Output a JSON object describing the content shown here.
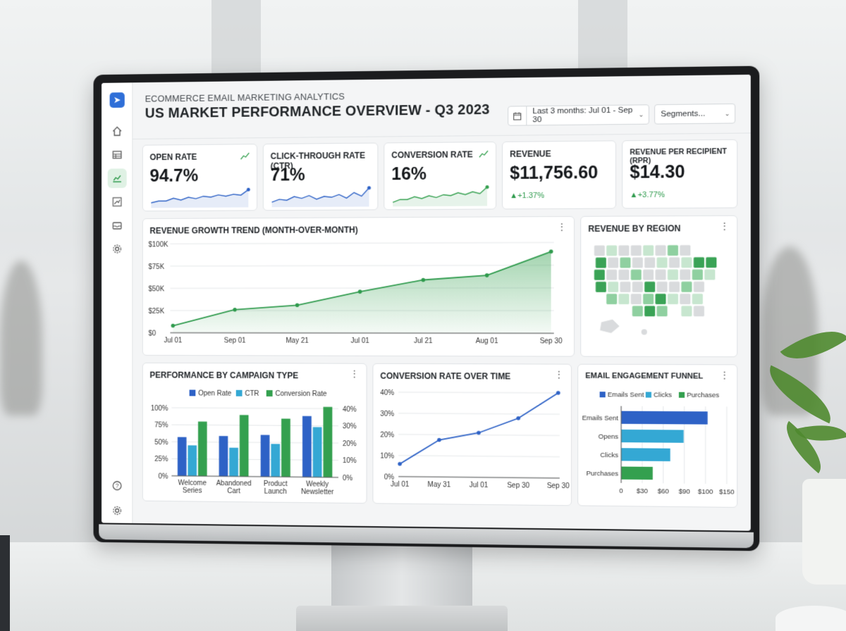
{
  "header": {
    "subtitle": "ECOMMERCE EMAIL MARKETING ANALYTICS",
    "title": "US MARKET PERFORMANCE OVERVIEW - Q3 2023",
    "date_range": "Last 3 months: Jul 01 - Sep 30",
    "segments_label": "Segments..."
  },
  "sidebar": {
    "items": [
      "send-icon",
      "home-icon",
      "table-icon",
      "analytics-icon",
      "trend-icon",
      "inbox-icon",
      "settings-icon",
      "help-icon",
      "settings-icon"
    ],
    "active": "analytics-icon"
  },
  "kpis": [
    {
      "label": "OPEN RATE",
      "value": "94.7%",
      "spark": [
        0.2,
        0.3,
        0.3,
        0.45,
        0.35,
        0.5,
        0.42,
        0.55,
        0.5,
        0.62,
        0.55,
        0.65,
        0.6,
        0.9
      ],
      "color": "#2e62c6"
    },
    {
      "label": "CLICK-THROUGH RATE (CTR)",
      "value": "71%",
      "spark": [
        0.2,
        0.35,
        0.3,
        0.5,
        0.4,
        0.55,
        0.35,
        0.5,
        0.45,
        0.6,
        0.4,
        0.7,
        0.5,
        0.95
      ],
      "color": "#2e62c6"
    },
    {
      "label": "CONVERSION RATE",
      "value": "16%",
      "spark": [
        0.15,
        0.3,
        0.3,
        0.45,
        0.35,
        0.5,
        0.4,
        0.55,
        0.5,
        0.65,
        0.55,
        0.7,
        0.6,
        0.95
      ],
      "color": "#34a04f"
    },
    {
      "label": "REVENUE",
      "value": "$11,756.60",
      "delta": "▲+1.37%"
    },
    {
      "label": "REVENUE PER RECIPIENT (RPR)",
      "value": "$14.30",
      "delta": "▲+3.77%"
    }
  ],
  "revenue_trend": {
    "title": "REVENUE GROWTH TREND (MONTH-OVER-MONTH)",
    "y_ticks": [
      "$100K",
      "$75K",
      "$50K",
      "$25K",
      "$0"
    ],
    "x_ticks": [
      "Jul 01",
      "Sep 01",
      "May 21",
      "Jul 01",
      "Jul 21",
      "Aug 01",
      "Sep 30"
    ]
  },
  "region": {
    "title": "REVENUE BY REGION"
  },
  "campaign": {
    "title": "PERFORMANCE BY CAMPAIGN TYPE",
    "legend": [
      "Open Rate",
      "CTR",
      "Conversion Rate"
    ],
    "left_ticks": [
      "100%",
      "75%",
      "50%",
      "25%",
      "0%"
    ],
    "right_ticks": [
      "40%",
      "30%",
      "20%",
      "10%",
      "0%"
    ],
    "categories": [
      [
        "Welcome",
        "Series"
      ],
      [
        "Abandoned",
        "Cart"
      ],
      [
        "Product",
        "Launch"
      ],
      [
        "Weekly",
        "Newsletter"
      ]
    ]
  },
  "conversion_time": {
    "title": "CONVERSION RATE OVER TIME",
    "y_ticks": [
      "40%",
      "30%",
      "20%",
      "10%",
      "0%"
    ],
    "x_ticks": [
      "Jul 01",
      "May 31",
      "Jul 01",
      "Sep 30",
      "Sep 30"
    ]
  },
  "funnel": {
    "title": "EMAIL ENGAGEMENT FUNNEL",
    "legend": [
      "Emails Sent",
      "Clicks",
      "Purchases"
    ],
    "labels": [
      "Emails Sent",
      "Opens",
      "Clicks",
      "Purchases"
    ],
    "x_ticks": [
      "0",
      "$30",
      "$60",
      "$90",
      "$100",
      "$150"
    ]
  },
  "chart_data": [
    {
      "type": "area",
      "title": "REVENUE GROWTH TREND (MONTH-OVER-MONTH)",
      "x": [
        "Jul 01",
        "Sep 01",
        "May 21",
        "Jul 01",
        "Jul 21",
        "Aug 01",
        "Sep 30"
      ],
      "series": [
        {
          "values": [
            8000,
            26000,
            31000,
            46000,
            59000,
            64000,
            90000
          ]
        }
      ],
      "ylim": [
        0,
        100000
      ],
      "color": "#34a04f"
    },
    {
      "type": "bar",
      "title": "PERFORMANCE BY CAMPAIGN TYPE",
      "categories": [
        "Welcome Series",
        "Abandoned Cart",
        "Product Launch",
        "Weekly Newsletter"
      ],
      "series": [
        {
          "name": "Open Rate",
          "values": [
            57,
            59,
            61,
            89
          ],
          "axis": "left",
          "color": "#2e62c6"
        },
        {
          "name": "CTR",
          "values": [
            45,
            42,
            48,
            73
          ],
          "axis": "left",
          "color": "#34a8d4"
        },
        {
          "name": "Conversion Rate",
          "values": [
            32,
            36,
            34,
            41
          ],
          "axis": "right",
          "color": "#34a04f"
        }
      ],
      "ylim_left": [
        0,
        100
      ],
      "ylim_right": [
        0,
        40
      ]
    },
    {
      "type": "line",
      "title": "CONVERSION RATE OVER TIME",
      "x": [
        "Jul 01",
        "May 31",
        "Jul 01",
        "Sep 30",
        "Sep 30"
      ],
      "series": [
        {
          "values": [
            6,
            17.5,
            21,
            28,
            40
          ]
        }
      ],
      "ylim": [
        0,
        40
      ],
      "color": "#2e62c6"
    },
    {
      "type": "bar",
      "title": "EMAIL ENGAGEMENT FUNNEL",
      "orientation": "horizontal",
      "categories": [
        "Emails Sent",
        "Opens",
        "Clicks",
        "Purchases"
      ],
      "values": [
        123,
        89,
        70,
        45
      ],
      "colors": [
        "#2e62c6",
        "#34a8d4",
        "#34a8d4",
        "#34a04f"
      ],
      "xlim": [
        0,
        150
      ]
    }
  ],
  "map": {
    "colors": {
      "high": "#3aa356",
      "mid": "#8fd0a0",
      "low": "#c7e6cf",
      "none": "#d9dbdd"
    },
    "states": [
      [
        "none",
        "low",
        "none",
        "none",
        "low",
        "none",
        "mid",
        "none",
        "high",
        "none"
      ],
      [
        "high",
        "none",
        "mid",
        "none",
        "none",
        "low",
        "none",
        "low",
        "high",
        "high"
      ],
      [
        "high",
        "none",
        "none",
        "mid",
        "none",
        "none",
        "low",
        "none",
        "mid",
        "low"
      ],
      [
        "high",
        "low",
        "none",
        "none",
        "high",
        "none",
        "none",
        "mid",
        "none",
        "none"
      ],
      [
        "none",
        "mid",
        "low",
        "none",
        "mid",
        "high",
        "low",
        "none",
        "low",
        "none"
      ],
      [
        "none",
        "none",
        "none",
        "mid",
        "high",
        "mid",
        "none",
        "low",
        "none",
        "none"
      ]
    ]
  }
}
